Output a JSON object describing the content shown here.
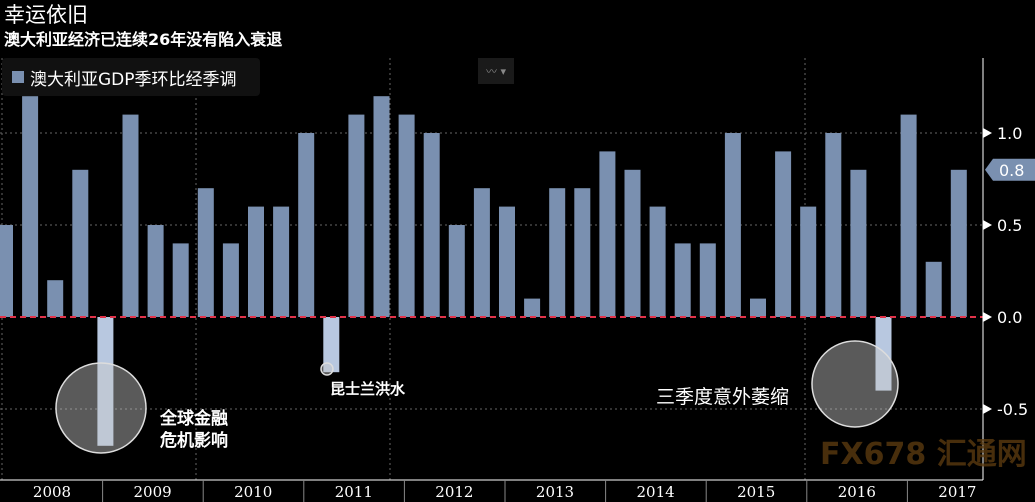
{
  "title": "幸运依旧",
  "subtitle": "澳大利亚经济已连续26年没有陷入衰退",
  "legend_label": "澳大利亚GDP季环比经季调",
  "chart_type_icon": "line-chart-icon",
  "annotations": {
    "gfc": "全球金融\n危机影响",
    "flood": "昆士兰洪水",
    "q3": "三季度意外萎缩"
  },
  "last_value_label": "0.8",
  "watermark": "FX678 汇通网",
  "colors": {
    "bar": "#7a90b0",
    "zero_line": "#e0334a",
    "bg": "#000000"
  },
  "chart_data": {
    "type": "bar",
    "title": "幸运依旧",
    "ylim": [
      -0.9,
      1.3
    ],
    "yticks": [
      -0.5,
      0.0,
      0.5,
      1.0
    ],
    "ytick_labels": [
      "-0.5",
      "0.0",
      "0.5",
      "1.0"
    ],
    "x_year_labels": [
      "2008",
      "2009",
      "2010",
      "2011",
      "2012",
      "2013",
      "2014",
      "2015",
      "2016",
      "2017"
    ],
    "values": [
      0.5,
      1.2,
      0.2,
      0.8,
      -0.7,
      1.1,
      0.5,
      0.4,
      0.7,
      0.4,
      0.6,
      0.6,
      1.0,
      -0.3,
      1.1,
      1.2,
      1.1,
      1.0,
      0.5,
      0.7,
      0.6,
      0.1,
      0.7,
      0.7,
      0.9,
      0.8,
      0.6,
      0.4,
      0.4,
      1.0,
      0.1,
      0.9,
      0.6,
      1.0,
      0.8,
      -0.4,
      1.1,
      0.3,
      0.8
    ]
  }
}
